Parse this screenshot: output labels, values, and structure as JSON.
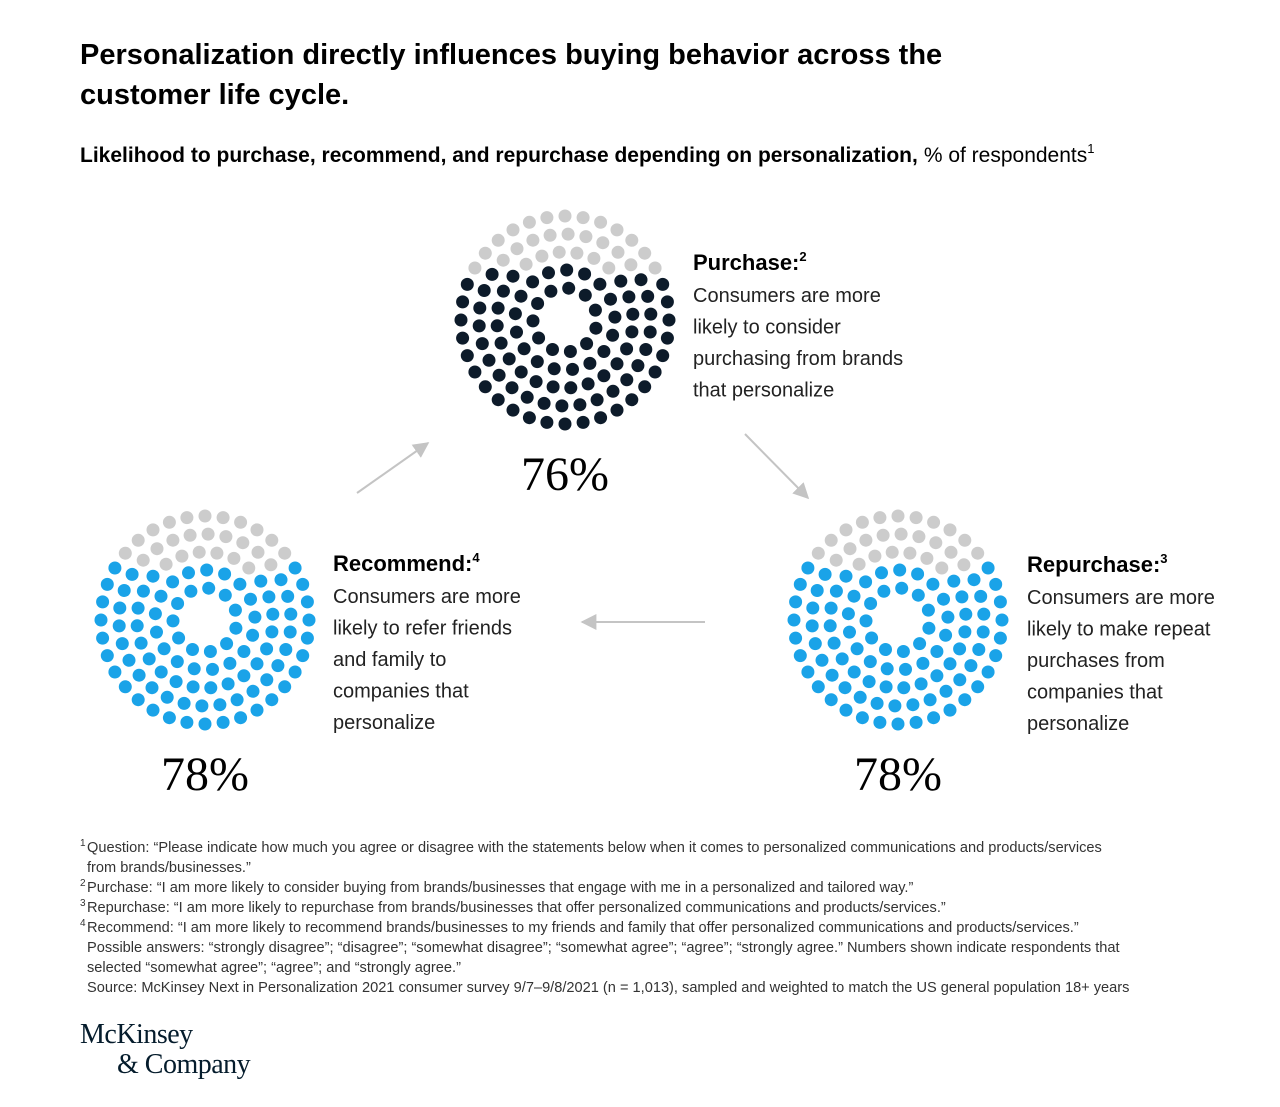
{
  "chart_data": {
    "type": "dot-circle",
    "title": [
      "Personalization directly influences buying behavior across the",
      "customer life cycle."
    ],
    "subtitle": "Likelihood to purchase, recommend, and repurchase depending on personalization,",
    "subtitle_unit": "% of respondents",
    "subtitle_note": "1",
    "categories": [
      "Purchase:",
      "Repurchase:",
      "Recommend:"
    ],
    "category_notes": [
      "2",
      "3",
      "4"
    ],
    "descriptions": [
      [
        "Consumers are more",
        "likely to consider",
        "purchasing from brands",
        "that personalize"
      ],
      [
        "Consumers are more",
        "likely to make repeat",
        "purchases from",
        "companies that",
        "personalize"
      ],
      [
        "Consumers are more",
        "likely to refer friends",
        "and family to",
        "companies that",
        "personalize"
      ]
    ],
    "values": [
      76,
      78,
      78
    ],
    "value_labels": [
      "76%",
      "78%",
      "78%"
    ],
    "colors": [
      "#0d1b2a",
      "#1aa3e8",
      "#1aa3e8"
    ],
    "remainder_color": "#cccccc"
  },
  "footnotes": [
    {
      "marker": "1",
      "lines": [
        "Question: “Please indicate how much you agree or disagree with the statements below when it comes to personalized communications and products/services",
        "from brands/businesses.”"
      ]
    },
    {
      "marker": "2",
      "lines": [
        "Purchase: “I am more likely to consider buying from brands/businesses that engage with me in a personalized and tailored way.”"
      ]
    },
    {
      "marker": "3",
      "lines": [
        "Repurchase: “I am more likely to repurchase from brands/businesses that offer personalized communications and products/services.”"
      ]
    },
    {
      "marker": "4",
      "lines": [
        "Recommend: “I am more likely to recommend brands/businesses to my friends and family that offer personalized communications and products/services.”",
        "Possible answers: “strongly disagree”; “disagree”; “somewhat disagree”; “somewhat agree”; “agree”; “strongly agree.” Numbers shown indicate respondents that",
        "selected “somewhat agree”; “agree”; and “strongly agree.”",
        "Source: McKinsey Next in Personalization 2021 consumer survey 9/7–9/8/2021 (n = 1,013), sampled and weighted to match the US general population 18+ years"
      ]
    }
  ],
  "logo": [
    "McKinsey",
    "& Company"
  ]
}
